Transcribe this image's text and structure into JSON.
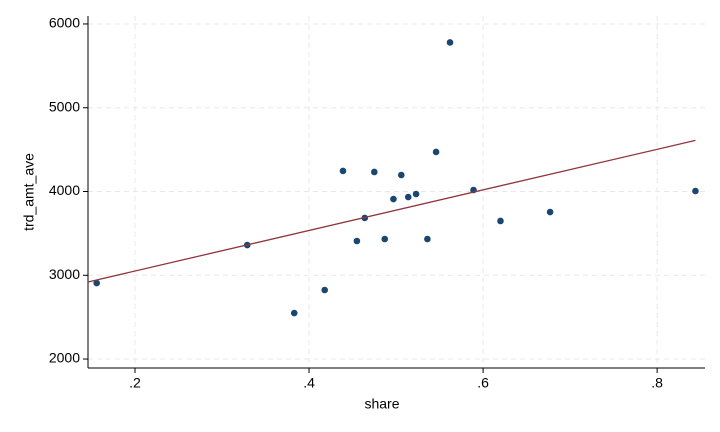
{
  "chart_data": {
    "type": "scatter",
    "x_label": "share",
    "y_label": "trd_amt_ave",
    "xlim": [
      0.146,
      0.855
    ],
    "ylim": [
      1893,
      6095
    ],
    "xticks": [
      {
        "value": 0.2,
        "label": ".2"
      },
      {
        "value": 0.4,
        "label": ".4"
      },
      {
        "value": 0.6,
        "label": ".6"
      },
      {
        "value": 0.8,
        "label": ".8"
      }
    ],
    "yticks": [
      2000,
      3000,
      4000,
      5000,
      6000
    ],
    "grid": true,
    "series": [
      {
        "type": "scatter",
        "color": "#1a476f",
        "x": [
          0.156,
          0.329,
          0.383,
          0.418,
          0.439,
          0.455,
          0.464,
          0.475,
          0.487,
          0.497,
          0.506,
          0.514,
          0.523,
          0.536,
          0.546,
          0.562,
          0.589,
          0.62,
          0.677,
          0.844
        ],
        "values": [
          2907,
          3361,
          2549,
          2824,
          4245,
          3409,
          3684,
          4233,
          3433,
          3910,
          4197,
          3934,
          3970,
          3433,
          4472,
          5779,
          4018,
          3648,
          3755,
          4006
        ]
      },
      {
        "type": "line",
        "color": "#90353b",
        "x": [
          0.146,
          0.844
        ],
        "values": [
          2920,
          4610
        ]
      }
    ]
  }
}
